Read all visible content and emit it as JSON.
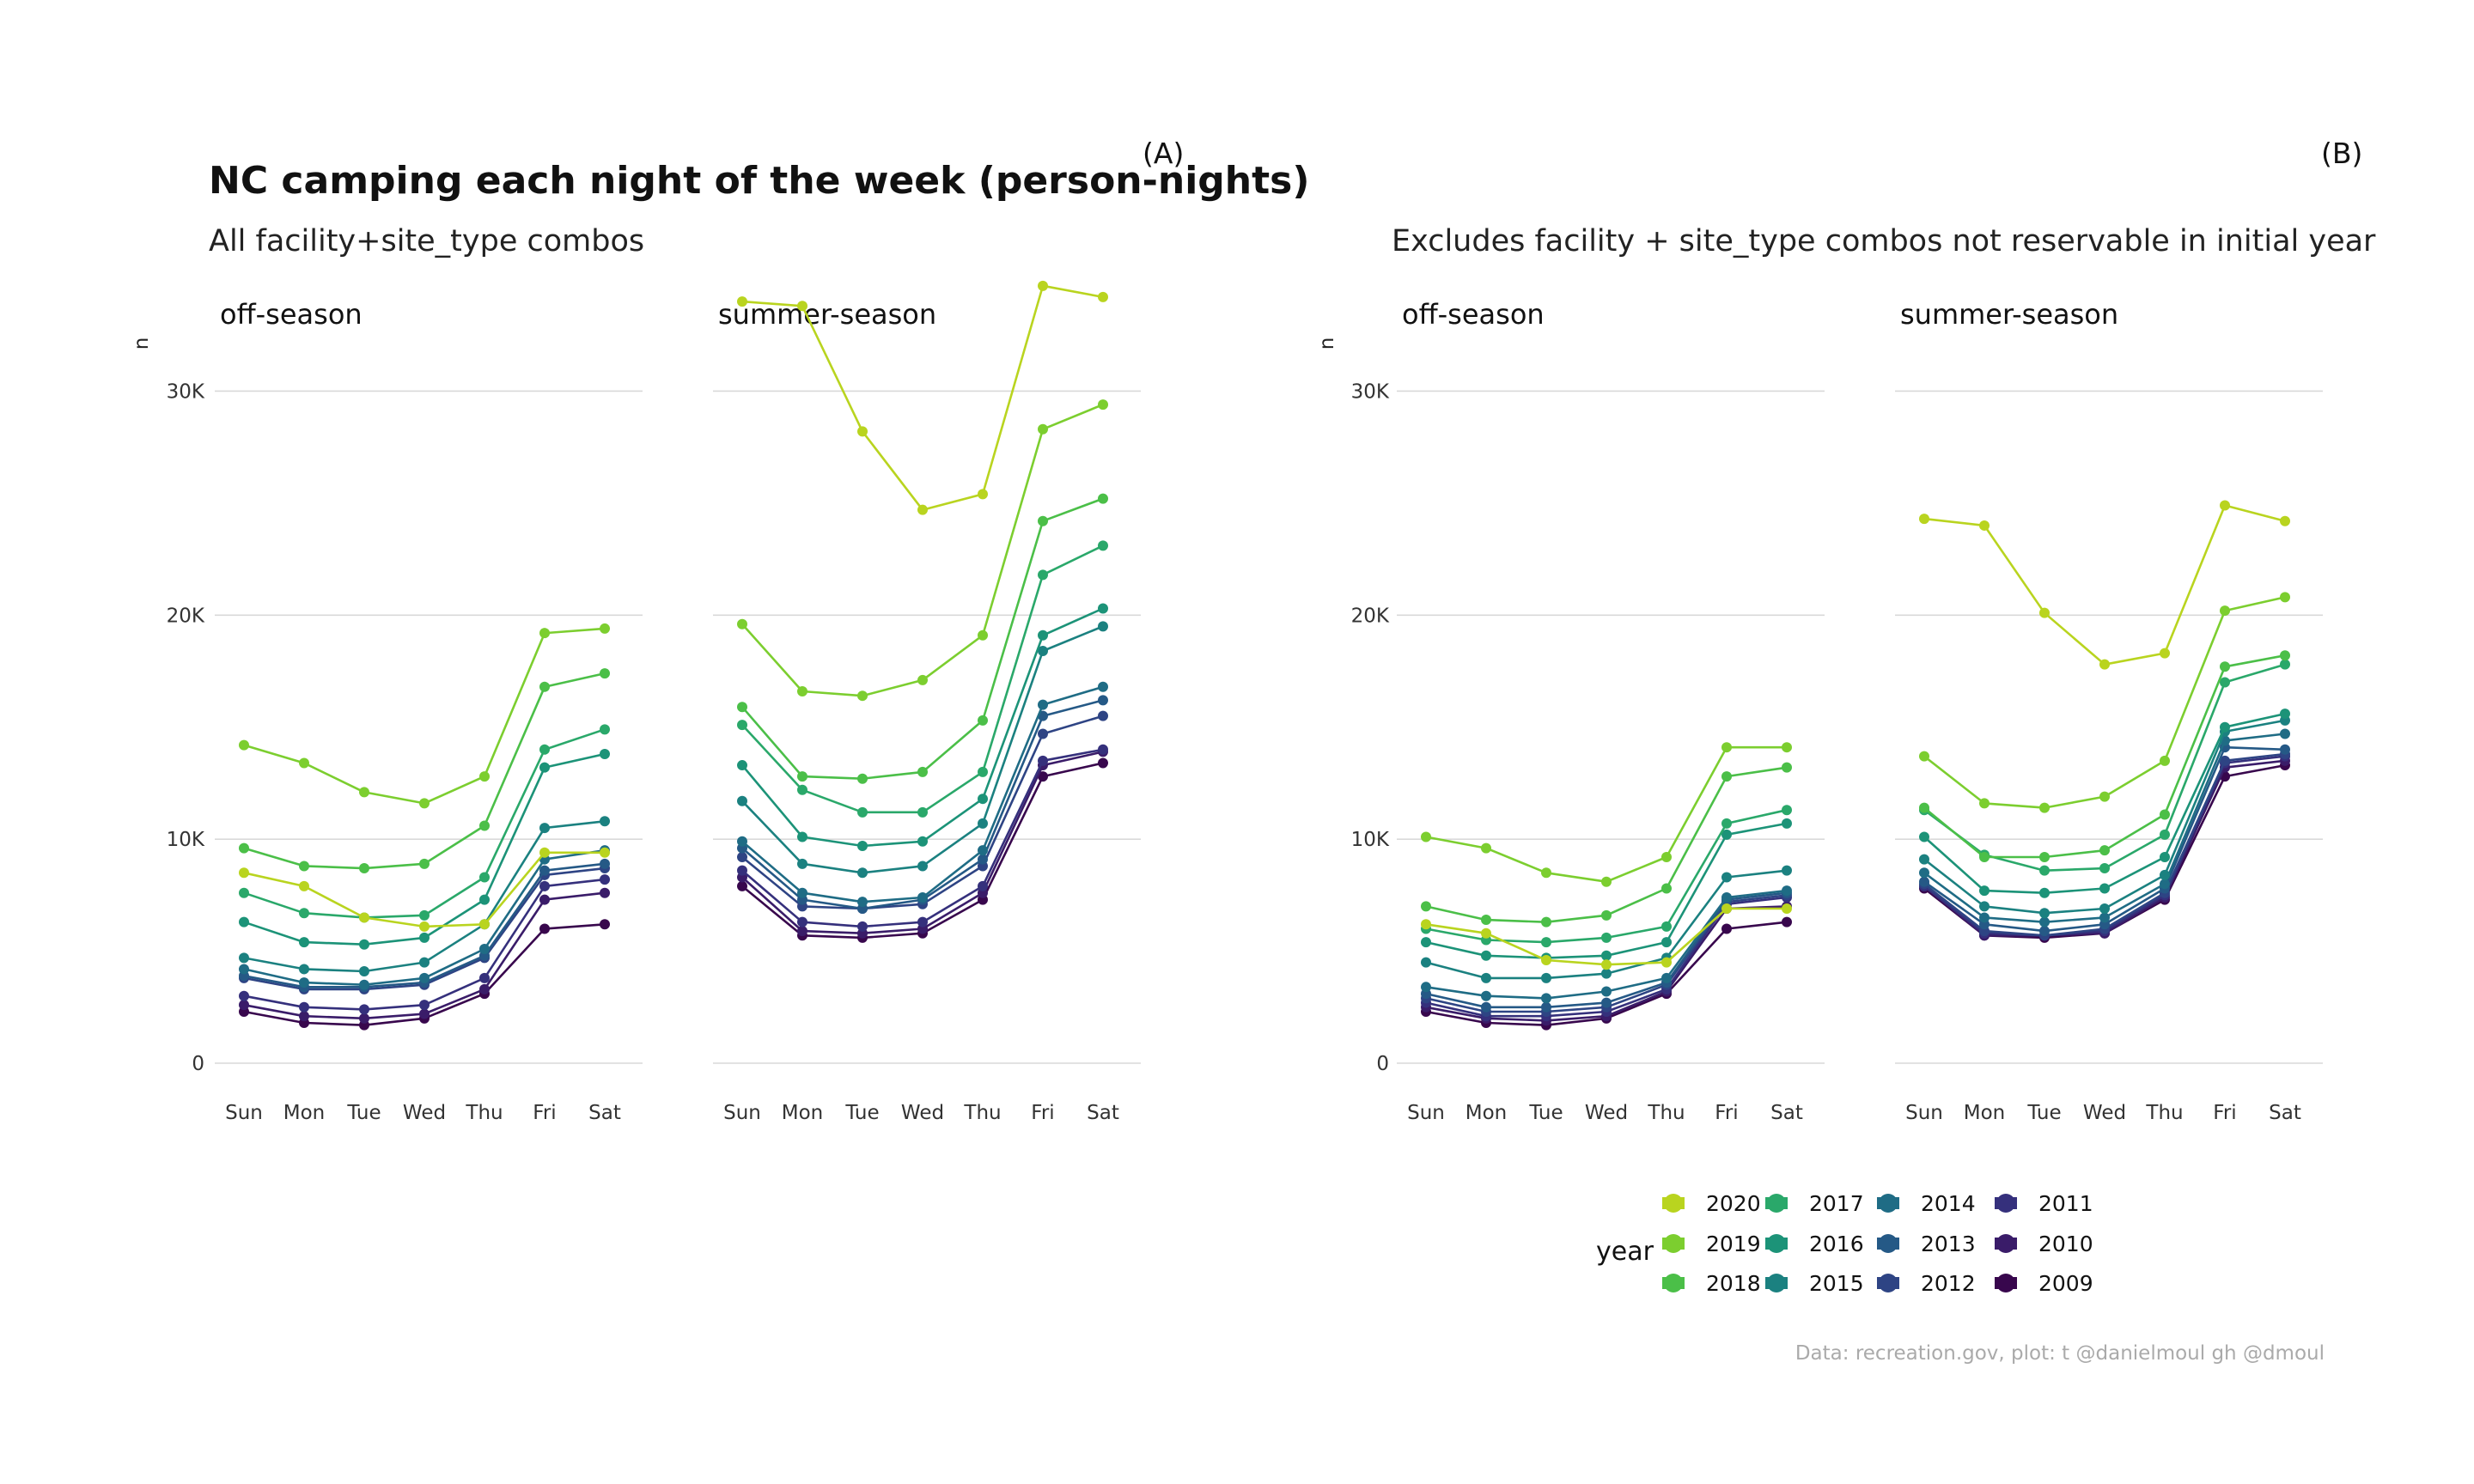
{
  "title": "NC camping each night of the week (person-nights)",
  "caption": "Data: recreation.gov, plot: t @danielmoul gh @dmoul",
  "legend": {
    "title": "year",
    "years": [
      "2020",
      "2019",
      "2018",
      "2017",
      "2016",
      "2015",
      "2014",
      "2013",
      "2012",
      "2011",
      "2010",
      "2009"
    ]
  },
  "colors": {
    "2020": "#b9d41f",
    "2019": "#7cce2f",
    "2018": "#4bbf48",
    "2017": "#2aa86a",
    "2016": "#1c9378",
    "2015": "#1b8180",
    "2014": "#1f6c85",
    "2013": "#255986",
    "2012": "#2e4484",
    "2011": "#35307c",
    "2010": "#3a1c69",
    "2009": "#38074d"
  },
  "chart_data": [
    {
      "type": "line",
      "tag": "(A)",
      "subtitle": "All facility+site_type combos",
      "ylabel": "n",
      "ylim": [
        0,
        35000
      ],
      "yticks": [
        0,
        10000,
        20000,
        30000
      ],
      "ytick_labels": [
        "0",
        "10K",
        "20K",
        "30K"
      ],
      "categories": [
        "Sun",
        "Mon",
        "Tue",
        "Wed",
        "Thu",
        "Fri",
        "Sat"
      ],
      "panels": [
        {
          "name": "off-season",
          "series": [
            {
              "name": "2020",
              "values": [
                8500,
                7900,
                6500,
                6100,
                6200,
                9400,
                9400
              ]
            },
            {
              "name": "2019",
              "values": [
                14200,
                13400,
                12100,
                11600,
                12800,
                19200,
                19400
              ]
            },
            {
              "name": "2018",
              "values": [
                9600,
                8800,
                8700,
                8900,
                10600,
                16800,
                17400
              ]
            },
            {
              "name": "2017",
              "values": [
                7600,
                6700,
                6500,
                6600,
                8300,
                14000,
                14900
              ]
            },
            {
              "name": "2016",
              "values": [
                6300,
                5400,
                5300,
                5600,
                7300,
                13200,
                13800
              ]
            },
            {
              "name": "2015",
              "values": [
                4700,
                4200,
                4100,
                4500,
                6200,
                10500,
                10800
              ]
            },
            {
              "name": "2014",
              "values": [
                4200,
                3600,
                3500,
                3800,
                5100,
                9100,
                9500
              ]
            },
            {
              "name": "2013",
              "values": [
                3900,
                3400,
                3400,
                3600,
                4800,
                8600,
                8900
              ]
            },
            {
              "name": "2012",
              "values": [
                3800,
                3300,
                3300,
                3500,
                4700,
                8400,
                8700
              ]
            },
            {
              "name": "2011",
              "values": [
                3000,
                2500,
                2400,
                2600,
                3800,
                7900,
                8200
              ]
            },
            {
              "name": "2010",
              "values": [
                2600,
                2100,
                2000,
                2200,
                3300,
                7300,
                7600
              ]
            },
            {
              "name": "2009",
              "values": [
                2300,
                1800,
                1700,
                2000,
                3100,
                6000,
                6200
              ]
            }
          ]
        },
        {
          "name": "summer-season",
          "series": [
            {
              "name": "2020",
              "values": [
                34000,
                33800,
                28200,
                24700,
                25400,
                34700,
                34200
              ]
            },
            {
              "name": "2019",
              "values": [
                19600,
                16600,
                16400,
                17100,
                19100,
                28300,
                29400
              ]
            },
            {
              "name": "2018",
              "values": [
                15900,
                12800,
                12700,
                13000,
                15300,
                24200,
                25200
              ]
            },
            {
              "name": "2017",
              "values": [
                15100,
                12200,
                11200,
                11200,
                13000,
                21800,
                23100
              ]
            },
            {
              "name": "2016",
              "values": [
                13300,
                10100,
                9700,
                9900,
                11800,
                19100,
                20300
              ]
            },
            {
              "name": "2015",
              "values": [
                11700,
                8900,
                8500,
                8800,
                10700,
                18400,
                19500
              ]
            },
            {
              "name": "2014",
              "values": [
                9900,
                7600,
                7200,
                7400,
                9500,
                16000,
                16800
              ]
            },
            {
              "name": "2013",
              "values": [
                9600,
                7300,
                6900,
                7300,
                9100,
                15500,
                16200
              ]
            },
            {
              "name": "2012",
              "values": [
                9200,
                7000,
                6900,
                7100,
                8800,
                14700,
                15500
              ]
            },
            {
              "name": "2011",
              "values": [
                8600,
                6300,
                6100,
                6300,
                7900,
                13500,
                14000
              ]
            },
            {
              "name": "2010",
              "values": [
                8300,
                5900,
                5800,
                6000,
                7600,
                13300,
                13900
              ]
            },
            {
              "name": "2009",
              "values": [
                7900,
                5700,
                5600,
                5800,
                7300,
                12800,
                13400
              ]
            }
          ]
        }
      ]
    },
    {
      "type": "line",
      "tag": "(B)",
      "subtitle": "Excludes facility + site_type combos not reservable in initial year",
      "ylabel": "n",
      "ylim": [
        0,
        35000
      ],
      "yticks": [
        0,
        10000,
        20000,
        30000
      ],
      "ytick_labels": [
        "0",
        "10K",
        "20K",
        "30K"
      ],
      "categories": [
        "Sun",
        "Mon",
        "Tue",
        "Wed",
        "Thu",
        "Fri",
        "Sat"
      ],
      "panels": [
        {
          "name": "off-season",
          "series": [
            {
              "name": "2020",
              "values": [
                6200,
                5800,
                4600,
                4400,
                4500,
                6900,
                6900
              ]
            },
            {
              "name": "2019",
              "values": [
                10100,
                9600,
                8500,
                8100,
                9200,
                14100,
                14100
              ]
            },
            {
              "name": "2018",
              "values": [
                7000,
                6400,
                6300,
                6600,
                7800,
                12800,
                13200
              ]
            },
            {
              "name": "2017",
              "values": [
                6000,
                5500,
                5400,
                5600,
                6100,
                10700,
                11300
              ]
            },
            {
              "name": "2016",
              "values": [
                5400,
                4800,
                4700,
                4800,
                5400,
                10200,
                10700
              ]
            },
            {
              "name": "2015",
              "values": [
                4500,
                3800,
                3800,
                4000,
                4700,
                8300,
                8600
              ]
            },
            {
              "name": "2014",
              "values": [
                3400,
                3000,
                2900,
                3200,
                3800,
                7400,
                7700
              ]
            },
            {
              "name": "2013",
              "values": [
                3100,
                2500,
                2500,
                2700,
                3600,
                7300,
                7600
              ]
            },
            {
              "name": "2012",
              "values": [
                2900,
                2300,
                2300,
                2500,
                3500,
                7200,
                7500
              ]
            },
            {
              "name": "2011",
              "values": [
                2700,
                2100,
                2100,
                2300,
                3300,
                7100,
                7400
              ]
            },
            {
              "name": "2010",
              "values": [
                2500,
                2000,
                1900,
                2100,
                3200,
                6900,
                7000
              ]
            },
            {
              "name": "2009",
              "values": [
                2300,
                1800,
                1700,
                2000,
                3100,
                6000,
                6300
              ]
            }
          ]
        },
        {
          "name": "summer-season",
          "series": [
            {
              "name": "2020",
              "values": [
                24300,
                24000,
                20100,
                17800,
                18300,
                24900,
                24200
              ]
            },
            {
              "name": "2019",
              "values": [
                13700,
                11600,
                11400,
                11900,
                13500,
                20200,
                20800
              ]
            },
            {
              "name": "2018",
              "values": [
                11400,
                9200,
                9200,
                9500,
                11100,
                17700,
                18200
              ]
            },
            {
              "name": "2017",
              "values": [
                11300,
                9300,
                8600,
                8700,
                10200,
                17000,
                17800
              ]
            },
            {
              "name": "2016",
              "values": [
                10100,
                7700,
                7600,
                7800,
                9200,
                15000,
                15600
              ]
            },
            {
              "name": "2015",
              "values": [
                9100,
                7000,
                6700,
                6900,
                8400,
                14800,
                15300
              ]
            },
            {
              "name": "2014",
              "values": [
                8500,
                6500,
                6300,
                6500,
                8000,
                14400,
                14700
              ]
            },
            {
              "name": "2013",
              "values": [
                8100,
                6200,
                5900,
                6200,
                7800,
                14100,
                14000
              ]
            },
            {
              "name": "2012",
              "values": [
                8000,
                5900,
                5700,
                6000,
                7600,
                13500,
                13800
              ]
            },
            {
              "name": "2011",
              "values": [
                7900,
                5800,
                5700,
                5900,
                7500,
                13400,
                13700
              ]
            },
            {
              "name": "2010",
              "values": [
                7900,
                5700,
                5700,
                5800,
                7400,
                13200,
                13500
              ]
            },
            {
              "name": "2009",
              "values": [
                7800,
                5700,
                5600,
                5800,
                7300,
                12800,
                13300
              ]
            }
          ]
        }
      ]
    }
  ]
}
